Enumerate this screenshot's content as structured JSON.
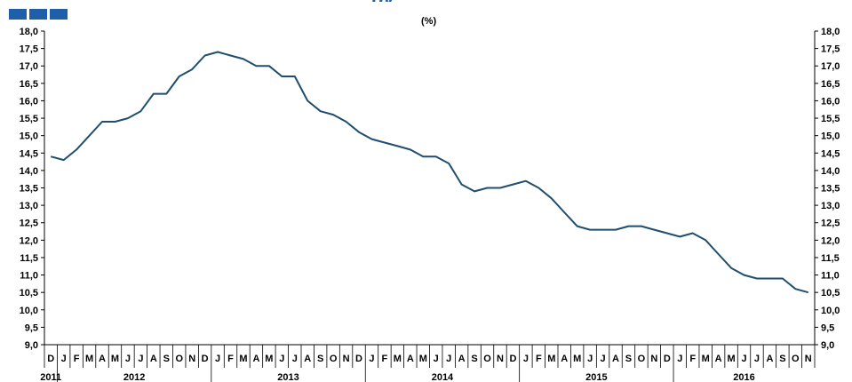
{
  "header": {
    "logo_name": "brand-logo",
    "title_fragment": "py",
    "unit": "(%)"
  },
  "colors": {
    "line": "#1f4e6e",
    "brand": "#1f5fa8",
    "axis": "#000000"
  },
  "chart_data": {
    "type": "line",
    "title": "",
    "unit": "(%)",
    "ylim": [
      9.0,
      18.0
    ],
    "y_ticks": [
      "9,0",
      "9,5",
      "10,0",
      "10,5",
      "11,0",
      "11,5",
      "12,0",
      "12,5",
      "13,0",
      "13,5",
      "14,0",
      "14,5",
      "15,0",
      "15,5",
      "16,0",
      "16,5",
      "17,0",
      "17,5",
      "18,0"
    ],
    "y_tick_values": [
      9.0,
      9.5,
      10.0,
      10.5,
      11.0,
      11.5,
      12.0,
      12.5,
      13.0,
      13.5,
      14.0,
      14.5,
      15.0,
      15.5,
      16.0,
      16.5,
      17.0,
      17.5,
      18.0
    ],
    "months": [
      "D",
      "J",
      "F",
      "M",
      "A",
      "M",
      "J",
      "J",
      "A",
      "S",
      "O",
      "N",
      "D",
      "J",
      "F",
      "M",
      "A",
      "M",
      "J",
      "J",
      "A",
      "S",
      "O",
      "N",
      "D",
      "J",
      "F",
      "M",
      "A",
      "M",
      "J",
      "J",
      "A",
      "S",
      "O",
      "N",
      "D",
      "J",
      "F",
      "M",
      "A",
      "M",
      "J",
      "J",
      "A",
      "S",
      "O",
      "N",
      "D",
      "J",
      "F",
      "M",
      "A",
      "M",
      "J",
      "J",
      "A",
      "S",
      "O",
      "N"
    ],
    "years": [
      {
        "label": "2011",
        "start": 0,
        "count": 1
      },
      {
        "label": "2012",
        "start": 1,
        "count": 12
      },
      {
        "label": "2013",
        "start": 13,
        "count": 12
      },
      {
        "label": "2014",
        "start": 25,
        "count": 12
      },
      {
        "label": "2015",
        "start": 37,
        "count": 12
      },
      {
        "label": "2016",
        "start": 49,
        "count": 11
      }
    ],
    "series": [
      {
        "values": [
          14.4,
          14.3,
          14.6,
          15.0,
          15.4,
          15.4,
          15.5,
          15.7,
          16.2,
          16.2,
          16.7,
          16.9,
          17.3,
          17.4,
          17.3,
          17.2,
          17.0,
          17.0,
          16.7,
          16.7,
          16.0,
          15.7,
          15.6,
          15.4,
          15.1,
          14.9,
          14.8,
          14.7,
          14.6,
          14.4,
          14.4,
          14.2,
          13.6,
          13.4,
          13.5,
          13.5,
          13.6,
          13.7,
          13.5,
          13.2,
          12.8,
          12.4,
          12.3,
          12.3,
          12.3,
          12.4,
          12.4,
          12.3,
          12.2,
          12.1,
          12.2,
          12.0,
          11.6,
          11.2,
          11.0,
          10.9,
          10.9,
          10.9,
          10.6,
          10.5
        ]
      }
    ],
    "grid": false,
    "legend": "none"
  }
}
